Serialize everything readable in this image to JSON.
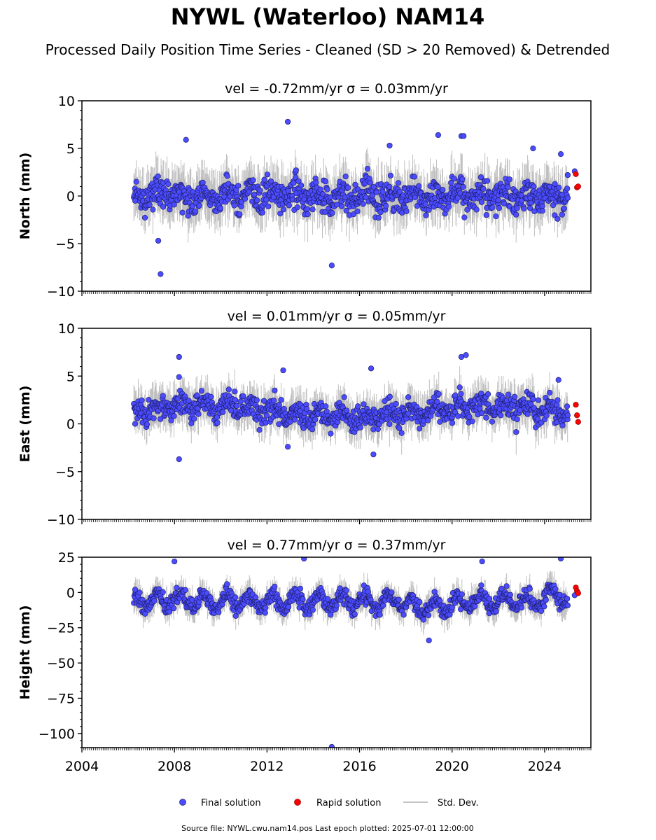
{
  "title": "NYWL (Waterloo) NAM14",
  "subtitle": "Processed Daily Position Time Series - Cleaned (SD > 20 Removed) & Detrended",
  "footer": "Source file: NYWL.cwu.nam14.pos  Last epoch plotted: 2025-07-01 12:00:00",
  "legend": {
    "final_label": "Final solution",
    "rapid_label": "Rapid solution",
    "sd_label": "Std. Dev."
  },
  "colors": {
    "final": "#4b4bff",
    "final_edge": "#1a1a5a",
    "rapid": "#ff0000",
    "errorbar": "#b0b0b0"
  },
  "chart_data": [
    {
      "type": "scatter",
      "panel": "north",
      "title": "vel = -0.72mm/yr   σ = 0.03mm/yr",
      "ylabel": "North (mm)",
      "xlabel": "",
      "xlim": [
        2004,
        2026
      ],
      "ylim": [
        -10,
        10
      ],
      "yticks": [
        -10,
        -5,
        0,
        5,
        10
      ],
      "ytick_labels": [
        "−10",
        "−5",
        "0",
        "5",
        "10"
      ],
      "xticks": [
        2004,
        2008,
        2012,
        2016,
        2020,
        2024
      ],
      "xtick_labels": [],
      "series": [
        {
          "name": "Final solution",
          "x": [
            2006.3,
            2007.3,
            2007.4,
            2008.5,
            2012.9,
            2014.8,
            2017.3,
            2019.4,
            2020.4,
            2020.5,
            2023.5,
            2024.7,
            2025.0,
            2025.3
          ],
          "y": [
            -0.5,
            -4.7,
            -8.2,
            5.9,
            7.8,
            -7.3,
            5.3,
            6.4,
            6.3,
            6.3,
            5.0,
            4.4,
            2.2,
            2.6
          ]
        },
        {
          "name": "Rapid solution",
          "x": [
            2025.35,
            2025.4,
            2025.45
          ],
          "y": [
            2.3,
            0.9,
            1.0
          ]
        }
      ]
    },
    {
      "type": "scatter",
      "panel": "east",
      "title": "vel = 0.01mm/yr   σ = 0.05mm/yr",
      "ylabel": "East (mm)",
      "xlabel": "",
      "xlim": [
        2004,
        2026
      ],
      "ylim": [
        -10,
        10
      ],
      "yticks": [
        -10,
        -5,
        0,
        5,
        10
      ],
      "ytick_labels": [
        "−10",
        "−5",
        "0",
        "5",
        "10"
      ],
      "xticks": [
        2004,
        2008,
        2012,
        2016,
        2020,
        2024
      ],
      "xtick_labels": [],
      "series": [
        {
          "name": "Final solution",
          "x": [
            2006.3,
            2008.2,
            2008.2,
            2008.2,
            2012.7,
            2012.9,
            2016.5,
            2016.6,
            2020.4,
            2020.6,
            2024.6,
            2025.0
          ],
          "y": [
            0.0,
            7.0,
            4.9,
            -3.7,
            5.6,
            -2.4,
            5.8,
            -3.2,
            7.0,
            7.2,
            4.6,
            0.9
          ]
        },
        {
          "name": "Rapid solution",
          "x": [
            2025.35,
            2025.4,
            2025.45
          ],
          "y": [
            2.0,
            0.9,
            0.2
          ]
        }
      ]
    },
    {
      "type": "scatter",
      "panel": "height",
      "title": "vel = 0.77mm/yr   σ = 0.37mm/yr",
      "ylabel": "Height (mm)",
      "xlabel": "",
      "xlim": [
        2004,
        2026
      ],
      "ylim": [
        -110,
        25
      ],
      "yticks": [
        -100,
        -75,
        -50,
        -25,
        0,
        25
      ],
      "ytick_labels": [
        "−100",
        "−75",
        "−50",
        "−25",
        "0",
        "25"
      ],
      "xticks": [
        2004,
        2008,
        2012,
        2016,
        2020,
        2024
      ],
      "xtick_labels": [
        "2004",
        "2008",
        "2012",
        "2016",
        "2020",
        "2024"
      ],
      "series": [
        {
          "name": "Final solution",
          "x": [
            2006.3,
            2008.0,
            2013.6,
            2014.8,
            2019.0,
            2021.3,
            2024.7,
            2025.3
          ],
          "y": [
            2.0,
            22.0,
            24.0,
            -109.5,
            -34.0,
            22.0,
            24.0,
            -2.0
          ]
        },
        {
          "name": "Rapid solution",
          "x": [
            2025.35,
            2025.4,
            2025.45
          ],
          "y": [
            3.5,
            1.0,
            -0.5
          ]
        }
      ]
    }
  ]
}
